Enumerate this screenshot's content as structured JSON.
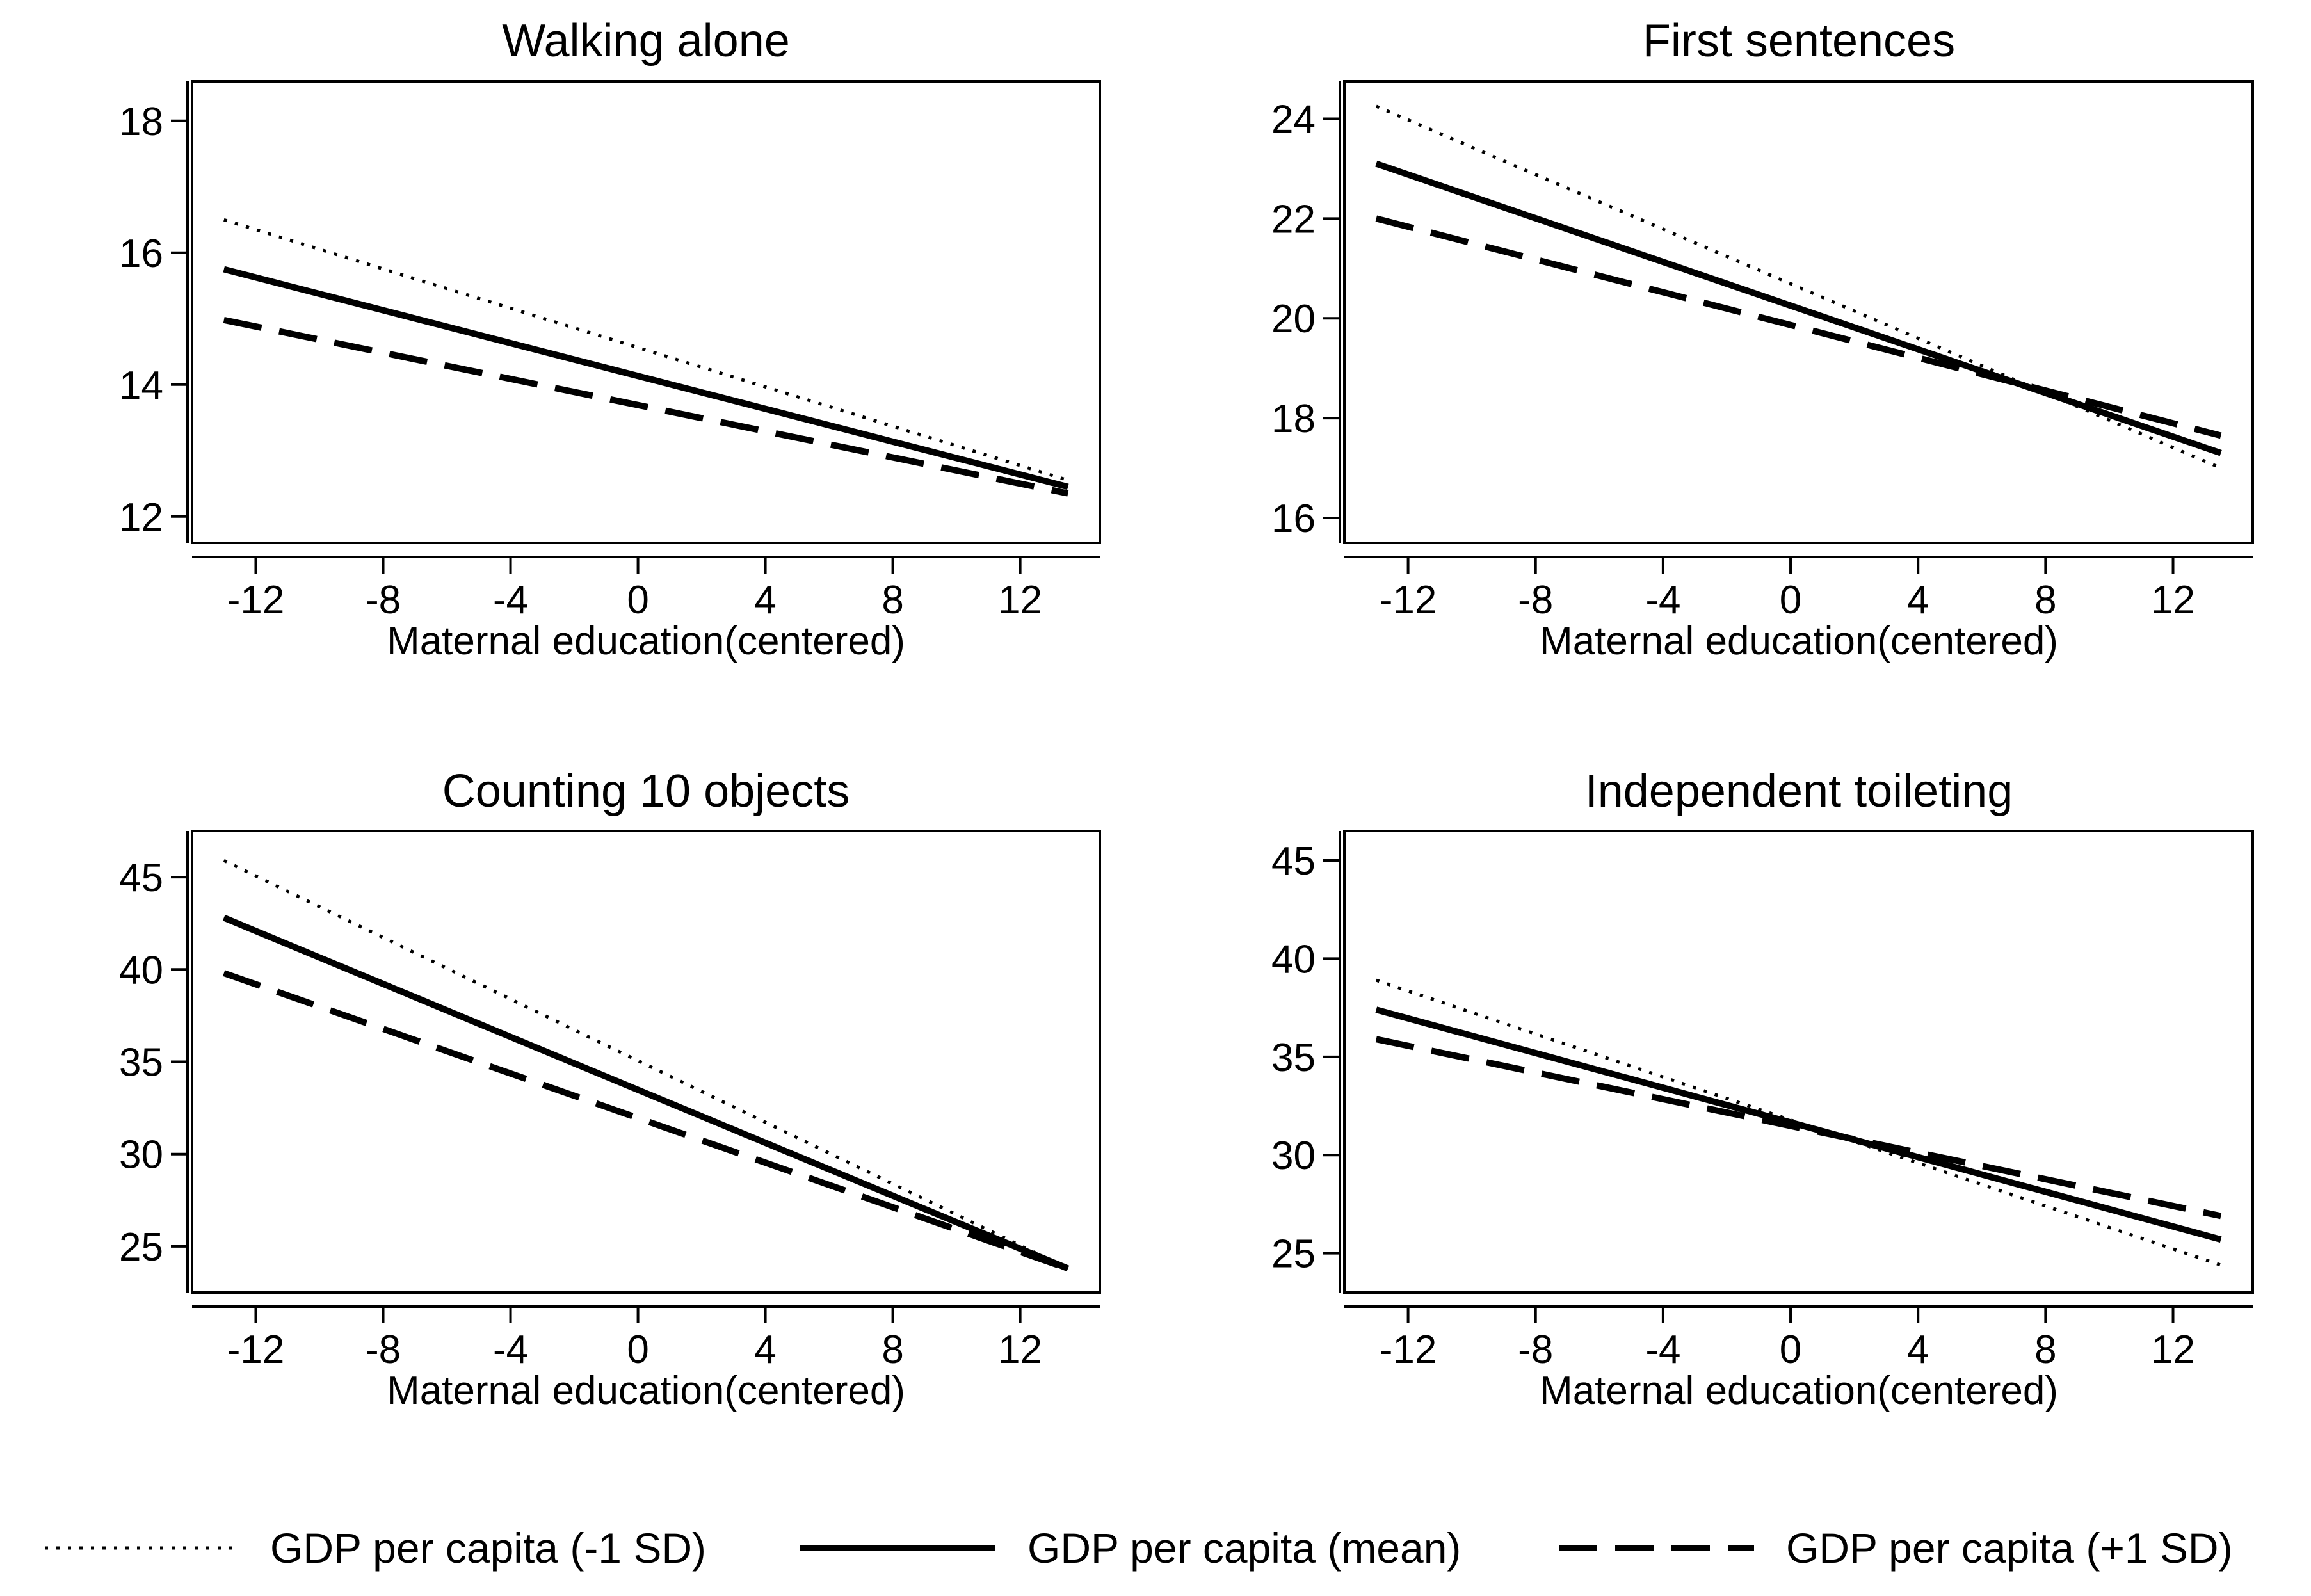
{
  "chart_data": [
    {
      "type": "line",
      "title": "Walking alone",
      "xlabel": "Maternal education(centered)",
      "ylabel": "",
      "xlim": [
        -14,
        14.5
      ],
      "ylim": [
        11.6,
        18.6
      ],
      "xticks": [
        -12,
        -8,
        -4,
        0,
        4,
        8,
        12
      ],
      "xtick_labels": [
        "-12",
        "-8",
        "-4",
        "0",
        "4",
        "8",
        "12"
      ],
      "yticks": [
        12,
        14,
        16,
        18
      ],
      "ytick_labels": [
        "12",
        "14",
        "16",
        "18"
      ],
      "series": [
        {
          "name": "GDP per capita (-1 SD)",
          "style": "dotted",
          "x": [
            -13,
            13.5
          ],
          "y": [
            16.5,
            12.55
          ]
        },
        {
          "name": "GDP per capita (mean)",
          "style": "solid",
          "x": [
            -13,
            13.5
          ],
          "y": [
            15.75,
            12.45
          ]
        },
        {
          "name": "GDP per capita (+1 SD)",
          "style": "dashed",
          "x": [
            -13,
            13.5
          ],
          "y": [
            14.98,
            12.35
          ]
        }
      ]
    },
    {
      "type": "line",
      "title": "First sentences",
      "xlabel": "Maternal education(centered)",
      "ylabel": "",
      "xlim": [
        -14,
        14.5
      ],
      "ylim": [
        15.5,
        24.75
      ],
      "xticks": [
        -12,
        -8,
        -4,
        0,
        4,
        8,
        12
      ],
      "xtick_labels": [
        "-12",
        "-8",
        "-4",
        "0",
        "4",
        "8",
        "12"
      ],
      "yticks": [
        16,
        18,
        20,
        22,
        24
      ],
      "ytick_labels": [
        "16",
        "18",
        "20",
        "22",
        "24"
      ],
      "series": [
        {
          "name": "GDP per capita (-1 SD)",
          "style": "dotted",
          "x": [
            -13,
            13.5
          ],
          "y": [
            24.25,
            17.0
          ]
        },
        {
          "name": "GDP per capita (mean)",
          "style": "solid",
          "x": [
            -13,
            13.5
          ],
          "y": [
            23.1,
            17.3
          ]
        },
        {
          "name": "GDP per capita (+1 SD)",
          "style": "dashed",
          "x": [
            -13,
            13.5
          ],
          "y": [
            22.0,
            17.65
          ]
        }
      ]
    },
    {
      "type": "line",
      "title": "Counting 10 objects",
      "xlabel": "Maternal education(centered)",
      "ylabel": "",
      "xlim": [
        -14,
        14.5
      ],
      "ylim": [
        22.5,
        47.5
      ],
      "xticks": [
        -12,
        -8,
        -4,
        0,
        4,
        8,
        12
      ],
      "xtick_labels": [
        "-12",
        "-8",
        "-4",
        "0",
        "4",
        "8",
        "12"
      ],
      "yticks": [
        25,
        30,
        35,
        40,
        45
      ],
      "ytick_labels": [
        "25",
        "30",
        "35",
        "40",
        "45"
      ],
      "series": [
        {
          "name": "GDP per capita (-1 SD)",
          "style": "dotted",
          "x": [
            -13,
            13.5
          ],
          "y": [
            45.9,
            23.8
          ]
        },
        {
          "name": "GDP per capita (mean)",
          "style": "solid",
          "x": [
            -13,
            13.5
          ],
          "y": [
            42.8,
            23.8
          ]
        },
        {
          "name": "GDP per capita (+1 SD)",
          "style": "dashed",
          "x": [
            -13,
            13.5
          ],
          "y": [
            39.8,
            23.8
          ]
        }
      ]
    },
    {
      "type": "line",
      "title": "Independent toileting",
      "xlabel": "Maternal education(centered)",
      "ylabel": "",
      "xlim": [
        -14,
        14.5
      ],
      "ylim": [
        23,
        46.5
      ],
      "xticks": [
        -12,
        -8,
        -4,
        0,
        4,
        8,
        12
      ],
      "xtick_labels": [
        "-12",
        "-8",
        "-4",
        "0",
        "4",
        "8",
        "12"
      ],
      "yticks": [
        25,
        30,
        35,
        40,
        45
      ],
      "ytick_labels": [
        "25",
        "30",
        "35",
        "40",
        "45"
      ],
      "series": [
        {
          "name": "GDP per capita (-1 SD)",
          "style": "dotted",
          "x": [
            -13,
            13.5
          ],
          "y": [
            38.9,
            24.4
          ]
        },
        {
          "name": "GDP per capita (mean)",
          "style": "solid",
          "x": [
            -13,
            13.5
          ],
          "y": [
            37.4,
            25.7
          ]
        },
        {
          "name": "GDP per capita (+1 SD)",
          "style": "dashed",
          "x": [
            -13,
            13.5
          ],
          "y": [
            35.9,
            26.9
          ]
        }
      ]
    }
  ],
  "legend": {
    "placement": "bottom",
    "items": [
      {
        "label": "GDP per capita (-1 SD)",
        "style": "dotted"
      },
      {
        "label": "GDP per capita (mean)",
        "style": "solid"
      },
      {
        "label": "GDP per capita (+1 SD)",
        "style": "dashed"
      }
    ]
  },
  "colors": {
    "line": "#000000",
    "background": "#ffffff"
  }
}
